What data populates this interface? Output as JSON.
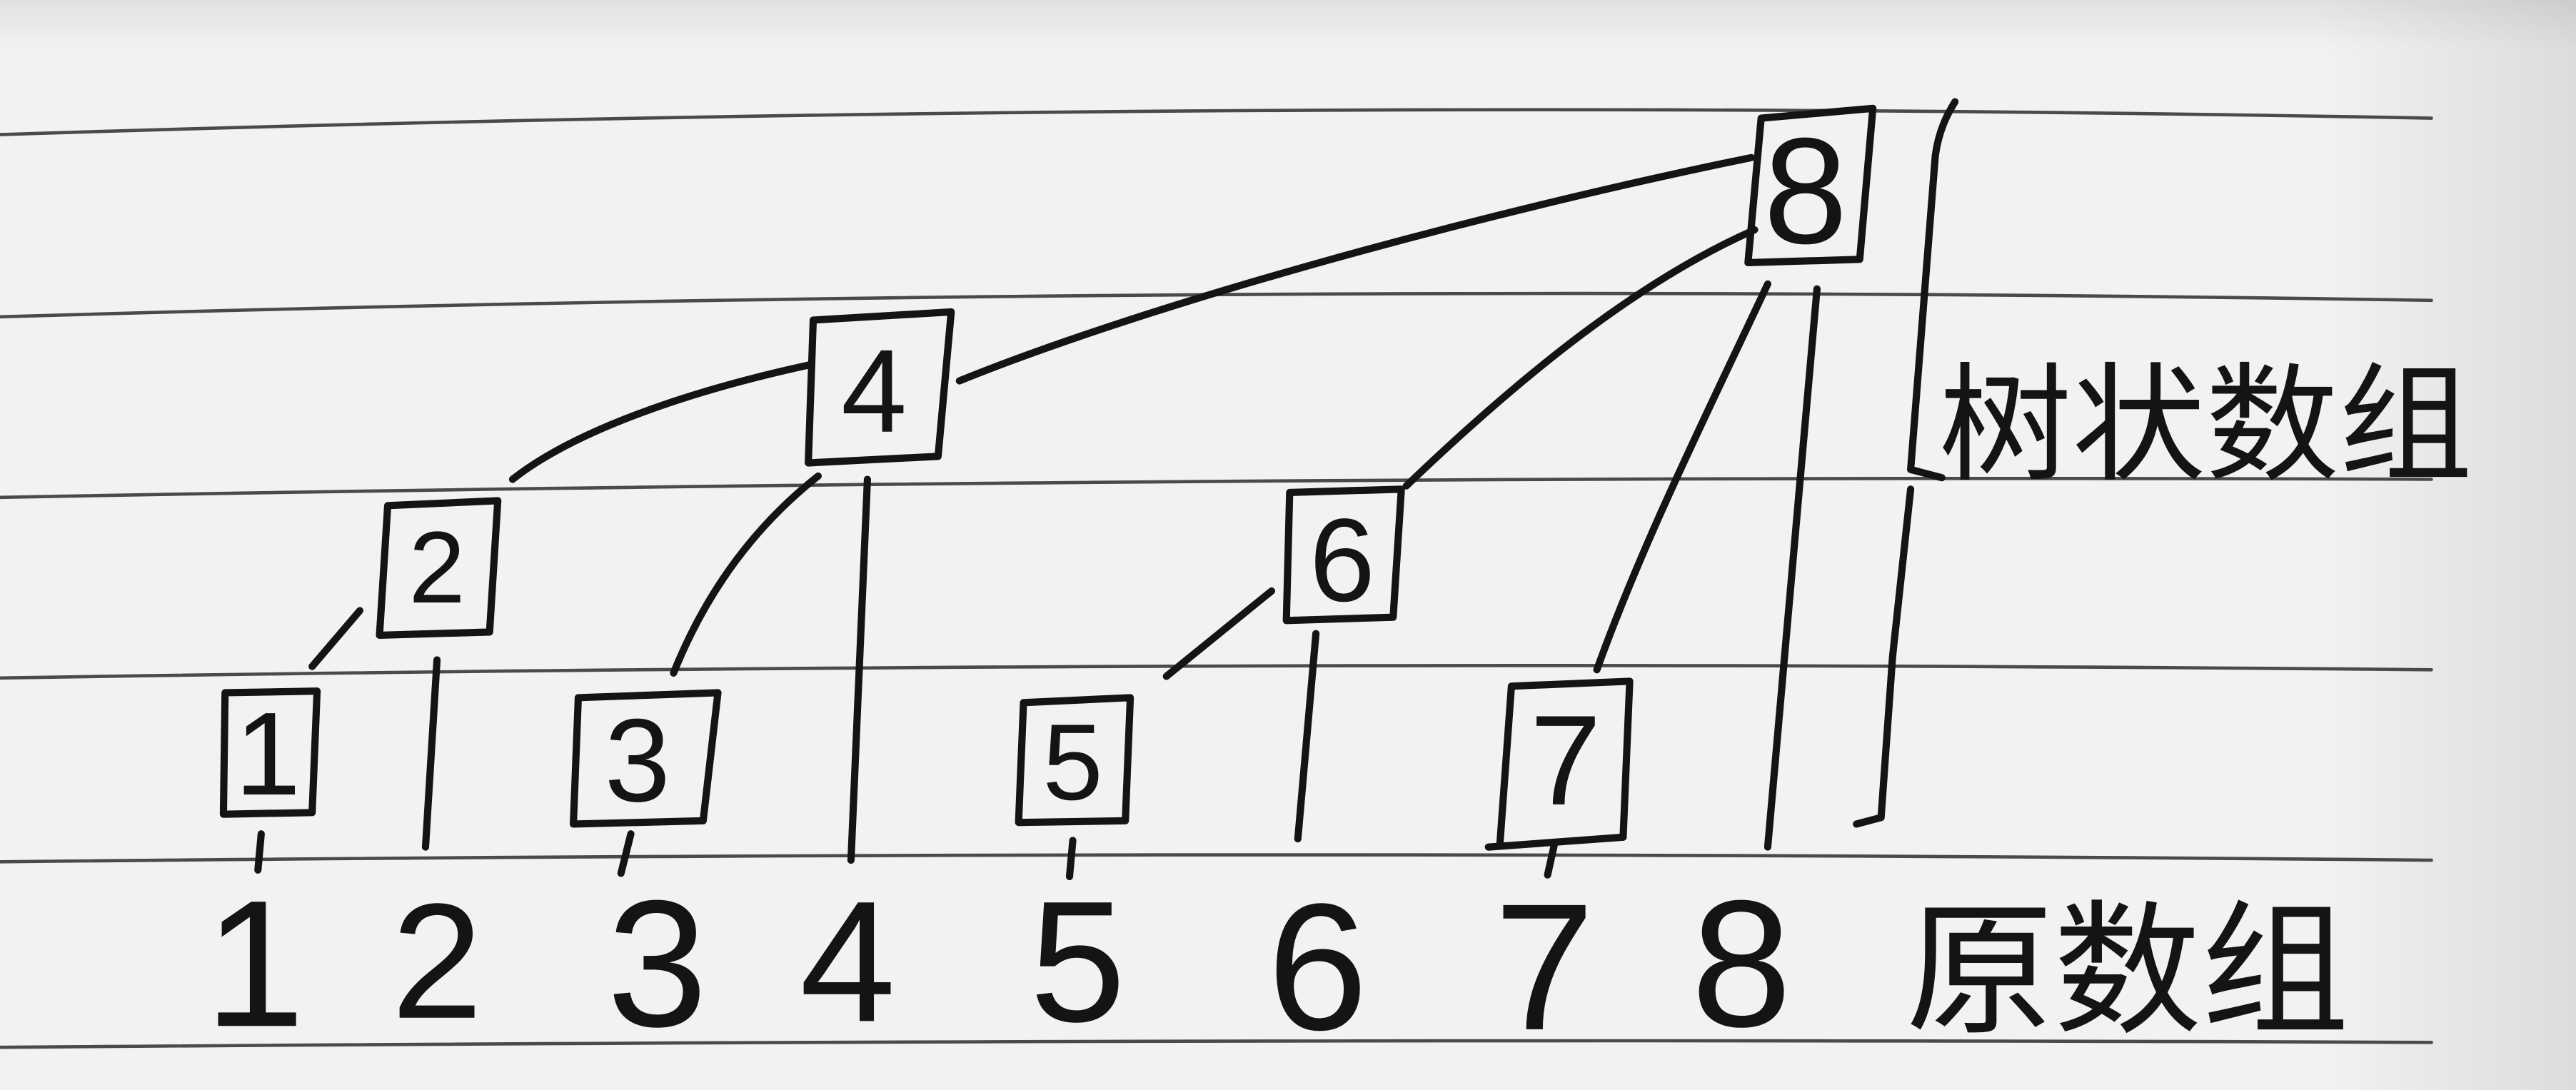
{
  "diagram": {
    "tree_array": {
      "label": "树状数组",
      "nodes": [
        "1",
        "2",
        "3",
        "4",
        "5",
        "6",
        "7",
        "8"
      ]
    },
    "original_array": {
      "label": "原数组",
      "values": [
        "1",
        "2",
        "3",
        "4",
        "5",
        "6",
        "7",
        "8"
      ]
    }
  },
  "colors": {
    "ink": "#141414",
    "paper": "#f2f2f0",
    "rule": "#4a4a4a"
  }
}
